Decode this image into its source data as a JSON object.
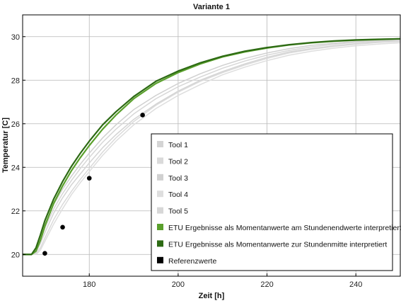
{
  "chart_data": {
    "type": "line",
    "title": "Variante 1",
    "xlabel": "Zeit [h]",
    "ylabel": "Temperatur [C]",
    "xlim": [
      165,
      250
    ],
    "ylim": [
      19,
      31
    ],
    "xticks": [
      180,
      200,
      220,
      240
    ],
    "yticks": [
      20,
      22,
      24,
      26,
      28,
      30
    ],
    "grid": true,
    "legend_position": "bottom-right",
    "series": [
      {
        "name": "Tool 1",
        "color": "#d4d4d4",
        "kind": "line",
        "x": [
          165,
          167,
          168,
          169,
          170,
          172,
          174,
          176,
          178,
          180,
          183,
          186,
          190,
          195,
          200,
          205,
          210,
          215,
          220,
          225,
          230,
          235,
          240,
          245,
          250
        ],
        "y": [
          20.0,
          20.0,
          20.1,
          20.5,
          21.0,
          21.9,
          22.6,
          23.2,
          23.7,
          24.2,
          24.9,
          25.5,
          26.2,
          26.9,
          27.5,
          28.0,
          28.4,
          28.75,
          29.05,
          29.3,
          29.45,
          29.58,
          29.68,
          29.76,
          29.82
        ]
      },
      {
        "name": "Tool 2",
        "color": "#dadada",
        "kind": "line",
        "x": [
          165,
          167,
          168,
          169,
          170,
          172,
          174,
          176,
          178,
          180,
          183,
          186,
          190,
          195,
          200,
          205,
          210,
          215,
          220,
          225,
          230,
          235,
          240,
          245,
          250
        ],
        "y": [
          20.0,
          20.0,
          20.05,
          20.3,
          20.75,
          21.6,
          22.3,
          22.9,
          23.45,
          23.95,
          24.7,
          25.35,
          26.1,
          26.85,
          27.45,
          27.95,
          28.35,
          28.7,
          29.0,
          29.25,
          29.42,
          29.55,
          29.65,
          29.73,
          29.78
        ]
      },
      {
        "name": "Tool 3",
        "color": "#d0d0d0",
        "kind": "line",
        "x": [
          165,
          167,
          168,
          169,
          170,
          172,
          174,
          176,
          178,
          180,
          183,
          186,
          190,
          195,
          200,
          205,
          210,
          215,
          220,
          225,
          230,
          235,
          240,
          245,
          250
        ],
        "y": [
          20.0,
          20.0,
          20.2,
          20.8,
          21.4,
          22.3,
          23.0,
          23.6,
          24.15,
          24.65,
          25.35,
          25.95,
          26.65,
          27.3,
          27.85,
          28.3,
          28.68,
          29.0,
          29.25,
          29.45,
          29.6,
          29.7,
          29.78,
          29.83,
          29.86
        ]
      },
      {
        "name": "Tool 4",
        "color": "#dedede",
        "kind": "line",
        "x": [
          165,
          167,
          168,
          169,
          170,
          172,
          174,
          176,
          178,
          180,
          183,
          186,
          190,
          195,
          200,
          205,
          210,
          215,
          220,
          225,
          230,
          235,
          240,
          245,
          250
        ],
        "y": [
          20.0,
          20.0,
          20.0,
          20.2,
          20.6,
          21.4,
          22.1,
          22.75,
          23.3,
          23.8,
          24.55,
          25.2,
          25.95,
          26.7,
          27.3,
          27.8,
          28.25,
          28.6,
          28.9,
          29.15,
          29.33,
          29.47,
          29.58,
          29.66,
          29.72
        ]
      },
      {
        "name": "Tool 5",
        "color": "#d7d7d7",
        "kind": "line",
        "x": [
          165,
          167,
          168,
          169,
          170,
          172,
          174,
          176,
          178,
          180,
          183,
          186,
          190,
          195,
          200,
          205,
          210,
          215,
          220,
          225,
          230,
          235,
          240,
          245,
          250
        ],
        "y": [
          20.0,
          20.0,
          20.1,
          20.6,
          21.2,
          22.1,
          22.8,
          23.4,
          23.95,
          24.45,
          25.15,
          25.75,
          26.45,
          27.15,
          27.7,
          28.15,
          28.55,
          28.88,
          29.15,
          29.37,
          29.53,
          29.65,
          29.74,
          29.8,
          29.84
        ]
      },
      {
        "name": "ETU Ergebnisse als Momentanwerte am Stundenendwerte interpretiert",
        "color": "#5aa02c",
        "kind": "line",
        "x": [
          165,
          167,
          168,
          169,
          170,
          172,
          174,
          176,
          178,
          180,
          183,
          186,
          190,
          195,
          200,
          205,
          210,
          215,
          220,
          225,
          230,
          235,
          240,
          245,
          250
        ],
        "y": [
          20.0,
          20.0,
          20.15,
          20.65,
          21.3,
          22.35,
          23.15,
          23.85,
          24.45,
          25.0,
          25.75,
          26.4,
          27.15,
          27.85,
          28.35,
          28.75,
          29.07,
          29.3,
          29.48,
          29.62,
          29.72,
          29.79,
          29.84,
          29.87,
          29.9
        ]
      },
      {
        "name": "ETU Ergebnisse als Momentanwerte zur Stundenmitte interpretiert",
        "color": "#2d6a14",
        "kind": "line",
        "x": [
          165,
          167,
          168,
          169,
          170,
          172,
          174,
          176,
          178,
          180,
          183,
          186,
          190,
          195,
          200,
          205,
          210,
          215,
          220,
          225,
          230,
          235,
          240,
          245,
          250
        ],
        "y": [
          20.0,
          20.0,
          20.3,
          20.9,
          21.55,
          22.55,
          23.35,
          24.05,
          24.65,
          25.2,
          25.95,
          26.55,
          27.25,
          27.95,
          28.42,
          28.8,
          29.1,
          29.33,
          29.5,
          29.63,
          29.73,
          29.8,
          29.85,
          29.88,
          29.9
        ]
      },
      {
        "name": "Referenzwerte",
        "color": "#000000",
        "kind": "scatter",
        "x": [
          170,
          174,
          180,
          192
        ],
        "y": [
          20.05,
          21.25,
          23.5,
          26.4
        ]
      }
    ]
  }
}
